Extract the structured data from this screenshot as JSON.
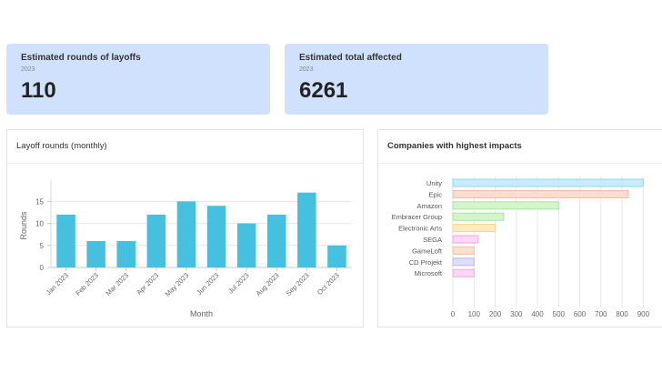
{
  "kpis": {
    "rounds": {
      "title": "Estimated rounds of layoffs",
      "year": "2023",
      "value": "110"
    },
    "affected": {
      "title": "Estimated total affected",
      "year": "2023",
      "value": "6261"
    }
  },
  "colors": {
    "kpi_bg": "#d0e1fd",
    "bar_monthly": "#45c0de",
    "company_fills": [
      "#c8ecff",
      "#ffdccc",
      "#d2f5cc",
      "#d2f5cc",
      "#ffecc2",
      "#ffd6f5",
      "#ffe0cc",
      "#e0dcff",
      "#ffd6f5"
    ],
    "company_strokes": [
      "#8fd4f7",
      "#f5b89f",
      "#a5e59b",
      "#a5e59b",
      "#f5d38c",
      "#f2a5e3",
      "#f5bf9f",
      "#bdb4f5",
      "#f2a5e3"
    ]
  },
  "chart_data": [
    {
      "type": "bar",
      "title": "Layoff rounds (monthly)",
      "categories": [
        "Jan 2023",
        "Feb 2023",
        "Mar 2023",
        "Apr 2023",
        "May 2023",
        "Jun 2023",
        "Jul 2023",
        "Aug 2023",
        "Sep 2023",
        "Oct 2023"
      ],
      "values": [
        12,
        6,
        6,
        12,
        15,
        14,
        10,
        12,
        17,
        5
      ],
      "xlabel": "Month",
      "ylabel": "Rounds",
      "ylim": [
        0,
        19
      ],
      "yticks": [
        0,
        5,
        10,
        15
      ],
      "ytick_labels": [
        "0",
        "5",
        "10",
        "15"
      ],
      "grid": true
    },
    {
      "type": "bar",
      "orientation": "horizontal",
      "title": "Companies with highest impacts",
      "categories": [
        "Unity",
        "Epic",
        "Amazon",
        "Embracer Group",
        "Electronic Arts",
        "SEGA",
        "GameLoft",
        "CD Projekt",
        "Microsoft"
      ],
      "values": [
        900,
        830,
        500,
        240,
        200,
        120,
        100,
        100,
        100
      ],
      "xlim": [
        0,
        950
      ],
      "xticks": [
        0,
        100,
        200,
        300,
        400,
        500,
        600,
        700,
        800,
        900
      ],
      "xtick_labels": [
        "0",
        "100",
        "200",
        "300",
        "400",
        "500",
        "600",
        "700",
        "800",
        "900"
      ],
      "grid": true
    }
  ]
}
